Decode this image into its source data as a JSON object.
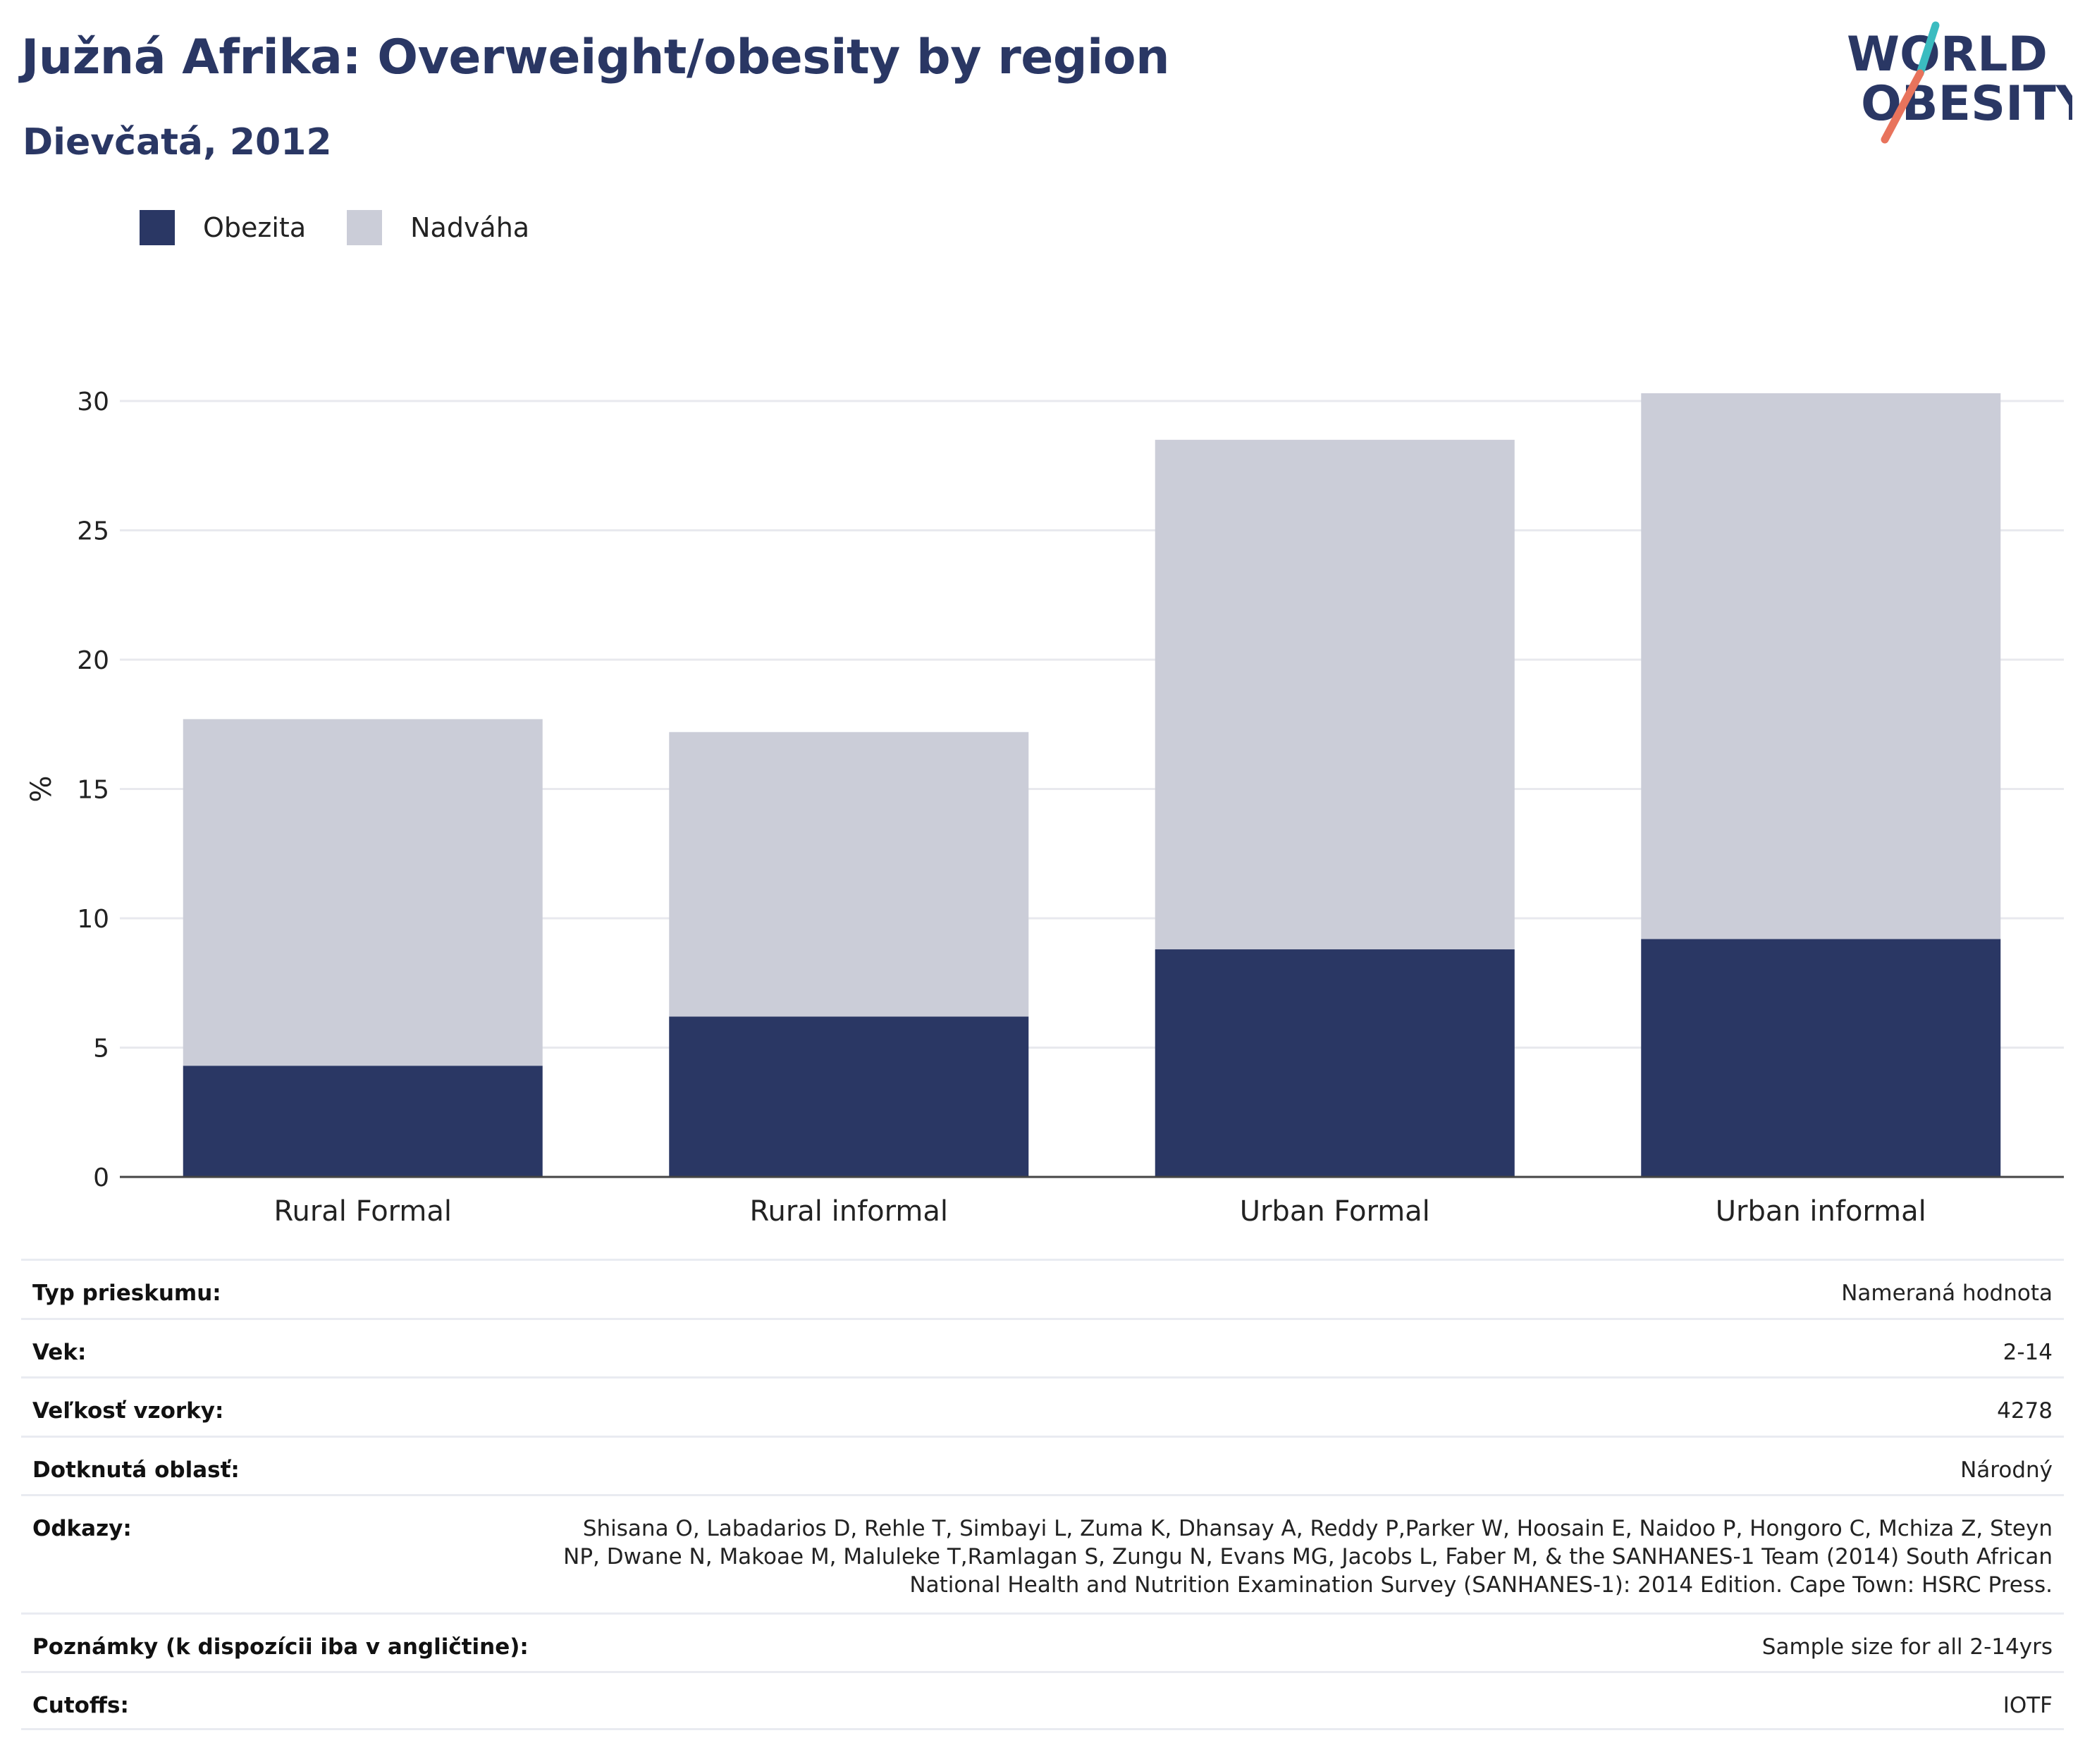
{
  "header": {
    "title": "Južná Afrika: Overweight/obesity by region",
    "subtitle": "Dievčatá, 2012"
  },
  "logo": {
    "line1": "WORLD",
    "line2": "OBESITY"
  },
  "colors": {
    "obesity": "#2a3764",
    "overweight": "#cbcdd8",
    "title": "#2a3764",
    "logo_teal": "#3bbcc0",
    "logo_red": "#e8735c"
  },
  "chart_data": {
    "type": "bar",
    "stacked": true,
    "categories": [
      "Rural Formal",
      "Rural informal",
      "Urban Formal",
      "Urban informal"
    ],
    "series": [
      {
        "name": "Obezita",
        "values": [
          4.3,
          6.2,
          8.8,
          9.2
        ]
      },
      {
        "name": "Nadváha",
        "values": [
          13.4,
          11.0,
          19.7,
          21.1
        ]
      }
    ],
    "ylabel": "%",
    "xlabel": "",
    "ylim": [
      0,
      32
    ],
    "yticks": [
      0,
      5,
      10,
      15,
      20,
      25,
      30
    ],
    "grid": true,
    "legend": "top-left"
  },
  "info": [
    {
      "label": "Typ prieskumu:",
      "value": "Nameraná hodnota"
    },
    {
      "label": "Vek:",
      "value": "2-14"
    },
    {
      "label": "Veľkosť vzorky:",
      "value": "4278"
    },
    {
      "label": "Dotknutá oblasť:",
      "value": "Národný"
    },
    {
      "label": "Odkazy:",
      "value": "Shisana O, Labadarios D, Rehle T, Simbayi L, Zuma K, Dhansay A, Reddy P,Parker W, Hoosain E, Naidoo P, Hongoro C, Mchiza Z, Steyn NP, Dwane N, Makoae M, Maluleke T,Ramlagan S, Zungu N, Evans MG, Jacobs L, Faber M, & the SANHANES-1 Team (2014) South African National Health and Nutrition Examination Survey (SANHANES-1): 2014 Edition. Cape Town: HSRC Press."
    },
    {
      "label": "Poznámky (k dispozícii iba v angličtine):",
      "value": "Sample size for all 2-14yrs"
    },
    {
      "label": "Cutoffs:",
      "value": "IOTF"
    }
  ]
}
